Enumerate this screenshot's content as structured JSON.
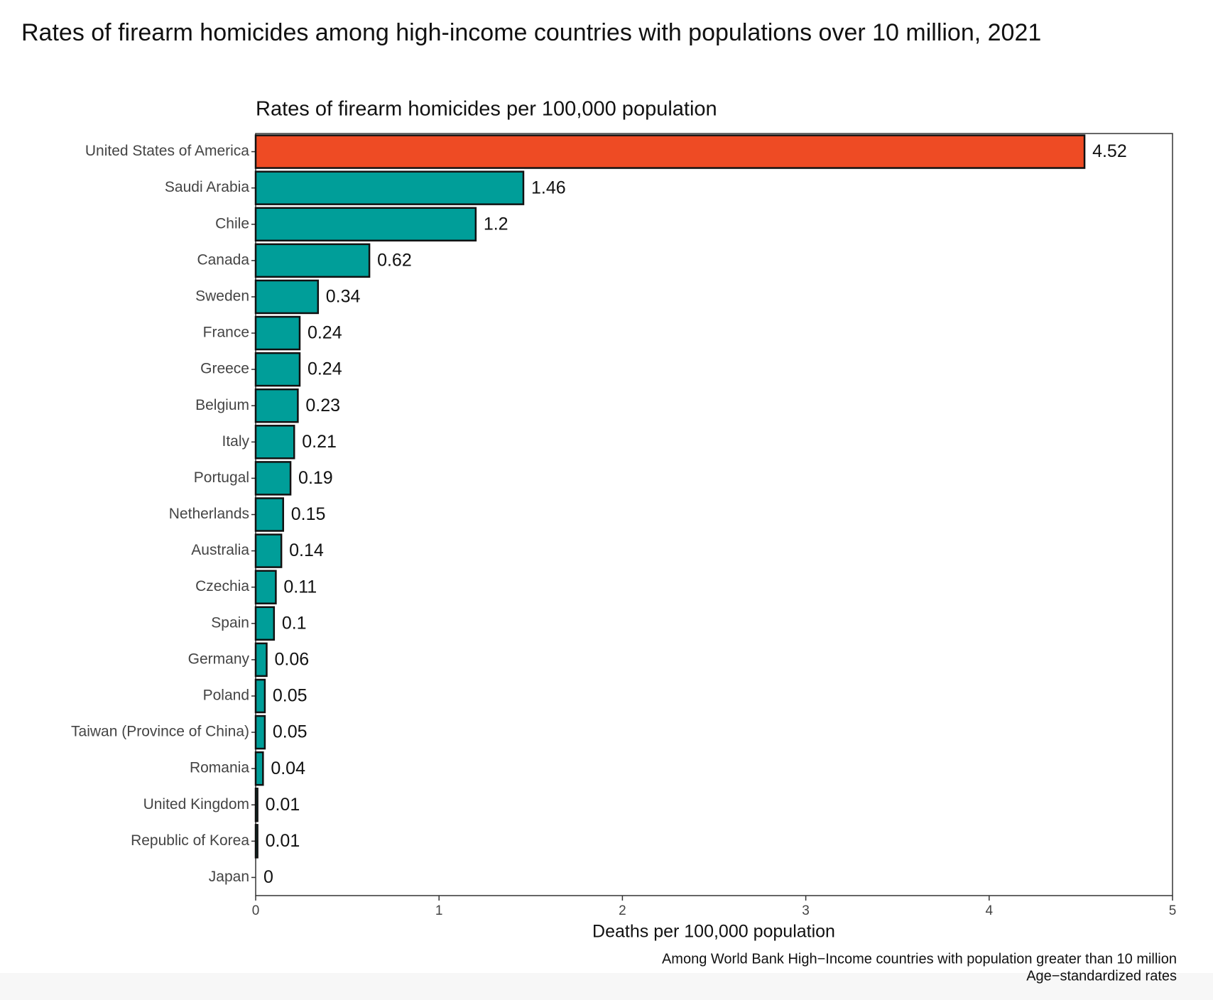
{
  "chart_data": {
    "type": "barh",
    "headline": "Rates of firearm homicides among high-income countries with populations over 10 million, 2021",
    "title": "Rates of firearm homicides per 100,000 population",
    "xlabel": "Deaths per 100,000 population",
    "caption": [
      "Among World Bank High−Income countries with population greater than 10 million",
      "Age−standardized rates"
    ],
    "categories": [
      "United States of America",
      "Saudi Arabia",
      "Chile",
      "Canada",
      "Sweden",
      "France",
      "Greece",
      "Belgium",
      "Italy",
      "Portugal",
      "Netherlands",
      "Australia",
      "Czechia",
      "Spain",
      "Germany",
      "Poland",
      "Taiwan (Province of China)",
      "Romania",
      "United Kingdom",
      "Republic of Korea",
      "Japan"
    ],
    "values": [
      4.52,
      1.46,
      1.2,
      0.62,
      0.34,
      0.24,
      0.24,
      0.23,
      0.21,
      0.19,
      0.15,
      0.14,
      0.11,
      0.1,
      0.06,
      0.05,
      0.05,
      0.04,
      0.01,
      0.01,
      0
    ],
    "colors": [
      "#ee4b24",
      "#009e99",
      "#009e99",
      "#009e99",
      "#009e99",
      "#009e99",
      "#009e99",
      "#009e99",
      "#009e99",
      "#009e99",
      "#009e99",
      "#009e99",
      "#009e99",
      "#009e99",
      "#009e99",
      "#009e99",
      "#009e99",
      "#009e99",
      "#009e99",
      "#009e99",
      "#009e99"
    ],
    "xlim": [
      0,
      5
    ],
    "xticks": [
      0,
      1,
      2,
      3,
      4,
      5
    ]
  }
}
